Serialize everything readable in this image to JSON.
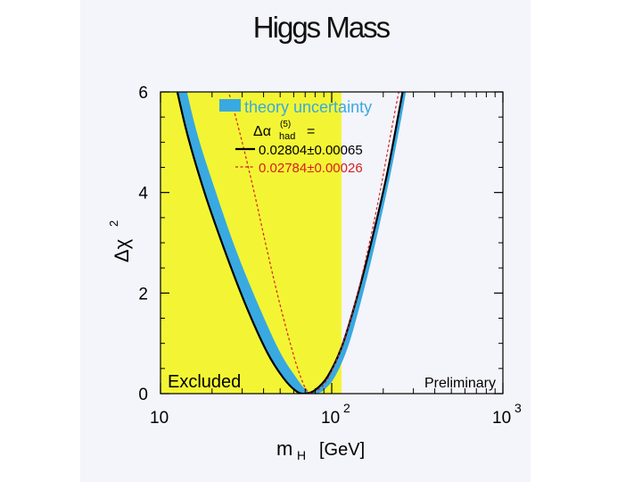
{
  "title": "Higgs Mass",
  "colors": {
    "excluded": "#f3f534",
    "band": "#39a9e1",
    "curve": "#000000",
    "alt_curve": "#d62020",
    "frame": "#000000"
  },
  "chart_data": {
    "type": "line",
    "title": "Higgs Mass",
    "xlabel": "m",
    "xlabel_sub": "H",
    "xlabel_unit": "[GeV]",
    "ylabel": "Δχ",
    "ylabel_sup": "2",
    "x_scale": "log",
    "xlim": [
      10,
      1000
    ],
    "ylim": [
      0,
      6
    ],
    "x_ticks": [
      {
        "value": 10,
        "base": "10",
        "exp": ""
      },
      {
        "value": 100,
        "base": "10",
        "exp": "2"
      },
      {
        "value": 1000,
        "base": "10",
        "exp": "3"
      }
    ],
    "y_ticks": [
      "0",
      "2",
      "4",
      "6"
    ],
    "excluded_region": {
      "x": [
        10,
        114
      ],
      "label": "Excluded"
    },
    "annotation": "Preliminary",
    "legend": {
      "position": "top-right",
      "band_label": "theory uncertainty",
      "header": "Δα",
      "header_sup": "(5)",
      "header_sub": "had",
      "header_suffix": "=",
      "entries": [
        "0.02804±0.00065",
        "0.02784±0.00026"
      ]
    },
    "series": [
      {
        "name": "0.02804±0.00065",
        "style": "solid",
        "x": [
          11,
          14,
          18,
          24,
          32,
          42,
          52,
          62,
          70,
          80,
          95,
          115,
          140,
          170,
          210,
          250,
          290
        ],
        "y": [
          6.9,
          5.3,
          4.02,
          2.8,
          1.7,
          0.82,
          0.32,
          0.05,
          0.0,
          0.07,
          0.35,
          0.95,
          1.9,
          3.0,
          4.35,
          5.7,
          6.9
        ]
      },
      {
        "name": "0.02784±0.00026",
        "style": "dashed",
        "x": [
          22,
          26,
          30,
          35,
          41,
          48,
          56,
          64,
          72,
          80,
          90,
          100,
          115,
          135,
          160,
          190,
          225,
          270
        ],
        "y": [
          6.6,
          5.8,
          5.0,
          4.05,
          3.0,
          2.0,
          1.12,
          0.45,
          0.05,
          0.04,
          0.18,
          0.45,
          0.95,
          1.72,
          2.75,
          3.95,
          5.3,
          6.7
        ]
      }
    ],
    "band": {
      "x": [
        11,
        14,
        18,
        24,
        32,
        42,
        52,
        62,
        70,
        80,
        95,
        115,
        140,
        170,
        210,
        250,
        290
      ],
      "upper": [
        6.9,
        5.3,
        4.02,
        2.8,
        1.7,
        0.82,
        0.32,
        0.05,
        0.0,
        0.07,
        0.35,
        0.95,
        1.9,
        3.0,
        4.35,
        5.7,
        6.9
      ],
      "lower_x": [
        12.5,
        16,
        21,
        28,
        38,
        50,
        62,
        72,
        80,
        90,
        105,
        125,
        150,
        180,
        220,
        262,
        300
      ],
      "lower": [
        6.9,
        5.3,
        4.02,
        2.8,
        1.7,
        0.82,
        0.32,
        0.05,
        0.0,
        0.07,
        0.35,
        0.95,
        1.9,
        3.0,
        4.35,
        5.7,
        6.9
      ]
    }
  }
}
